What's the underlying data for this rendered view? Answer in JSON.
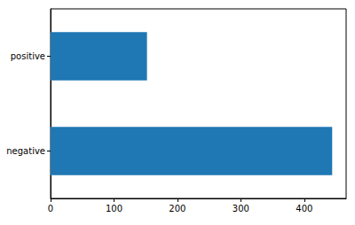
{
  "chart_data": {
    "type": "bar",
    "orientation": "horizontal",
    "categories": [
      "negative",
      "positive"
    ],
    "values": [
      444,
      152
    ],
    "color": "#1f77b4",
    "xlim": [
      0,
      466
    ],
    "xticks": [
      0,
      100,
      200,
      300,
      400
    ],
    "grid": false
  }
}
